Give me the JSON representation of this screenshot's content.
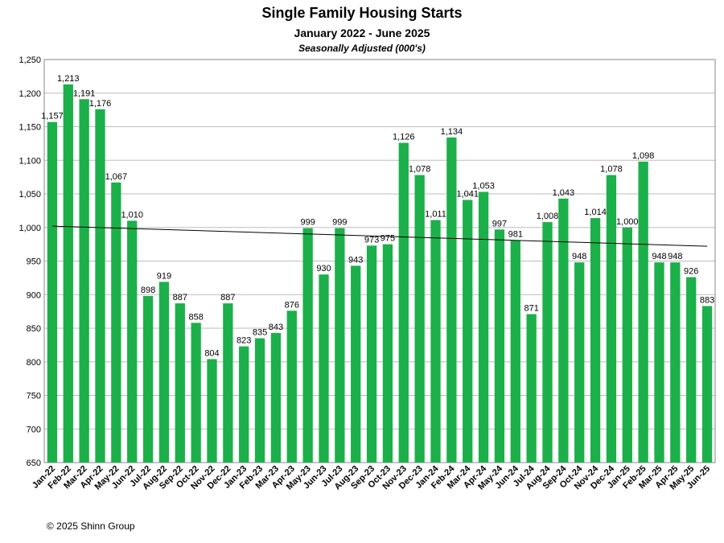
{
  "chart_data": {
    "type": "bar",
    "title": "Single Family Housing Starts",
    "subtitle": "January 2022 - June 2025",
    "subtitle2": "Seasonally Adjusted (000's)",
    "xlabel": "",
    "ylabel": "",
    "ylim": [
      650,
      1250
    ],
    "yticks": [
      "650",
      "700",
      "750",
      "800",
      "850",
      "900",
      "950",
      "1,000",
      "1,050",
      "1,100",
      "1,150",
      "1,200",
      "1,250"
    ],
    "categories": [
      "Jan-22",
      "Feb-22",
      "Mar-22",
      "Apr-22",
      "May-22",
      "Jun-22",
      "Jul-22",
      "Aug-22",
      "Sep-22",
      "Oct-22",
      "Nov-22",
      "Dec-22",
      "Jan-23",
      "Feb-23",
      "Mar-23",
      "Apr-23",
      "May-23",
      "Jun-23",
      "Jul-23",
      "Aug-23",
      "Sep-23",
      "Oct-23",
      "Nov-23",
      "Dec-23",
      "Jan-24",
      "Feb-24",
      "Mar-24",
      "Apr-24",
      "May-24",
      "Jun-24",
      "Jul-24",
      "Aug-24",
      "Sep-24",
      "Oct-24",
      "Nov-24",
      "Dec-24",
      "Jan-25",
      "Feb-25",
      "Mar-25",
      "Apr-25",
      "May-25",
      "Jun-25"
    ],
    "values": [
      1157,
      1213,
      1191,
      1176,
      1067,
      1010,
      898,
      919,
      887,
      858,
      804,
      887,
      823,
      835,
      843,
      876,
      999,
      930,
      999,
      943,
      973,
      975,
      1126,
      1078,
      1011,
      1134,
      1041,
      1053,
      997,
      981,
      871,
      1008,
      1043,
      948,
      1014,
      1078,
      1000,
      1098,
      948,
      948,
      926,
      883
    ],
    "value_labels": [
      "1,157",
      "1,213",
      "1,191",
      "1,176",
      "1,067",
      "1,010",
      "898",
      "919",
      "887",
      "858",
      "804",
      "887",
      "823",
      "835",
      "843",
      "876",
      "999",
      "930",
      "999",
      "943",
      "973",
      "975",
      "1,126",
      "1,078",
      "1,011",
      "1,134",
      "1,041",
      "1,053",
      "997",
      "981",
      "871",
      "1,008",
      "1,043",
      "948",
      "1,014",
      "1,078",
      "1,000",
      "1,098",
      "948",
      "948",
      "926",
      "883"
    ],
    "trendline": {
      "start": 1002,
      "end": 972
    },
    "grid": true,
    "bar_color": "#1cb04a",
    "grid_color": "#bdbdbd",
    "trend_color": "#000000"
  },
  "footer": "© 2025 Shinn Group"
}
